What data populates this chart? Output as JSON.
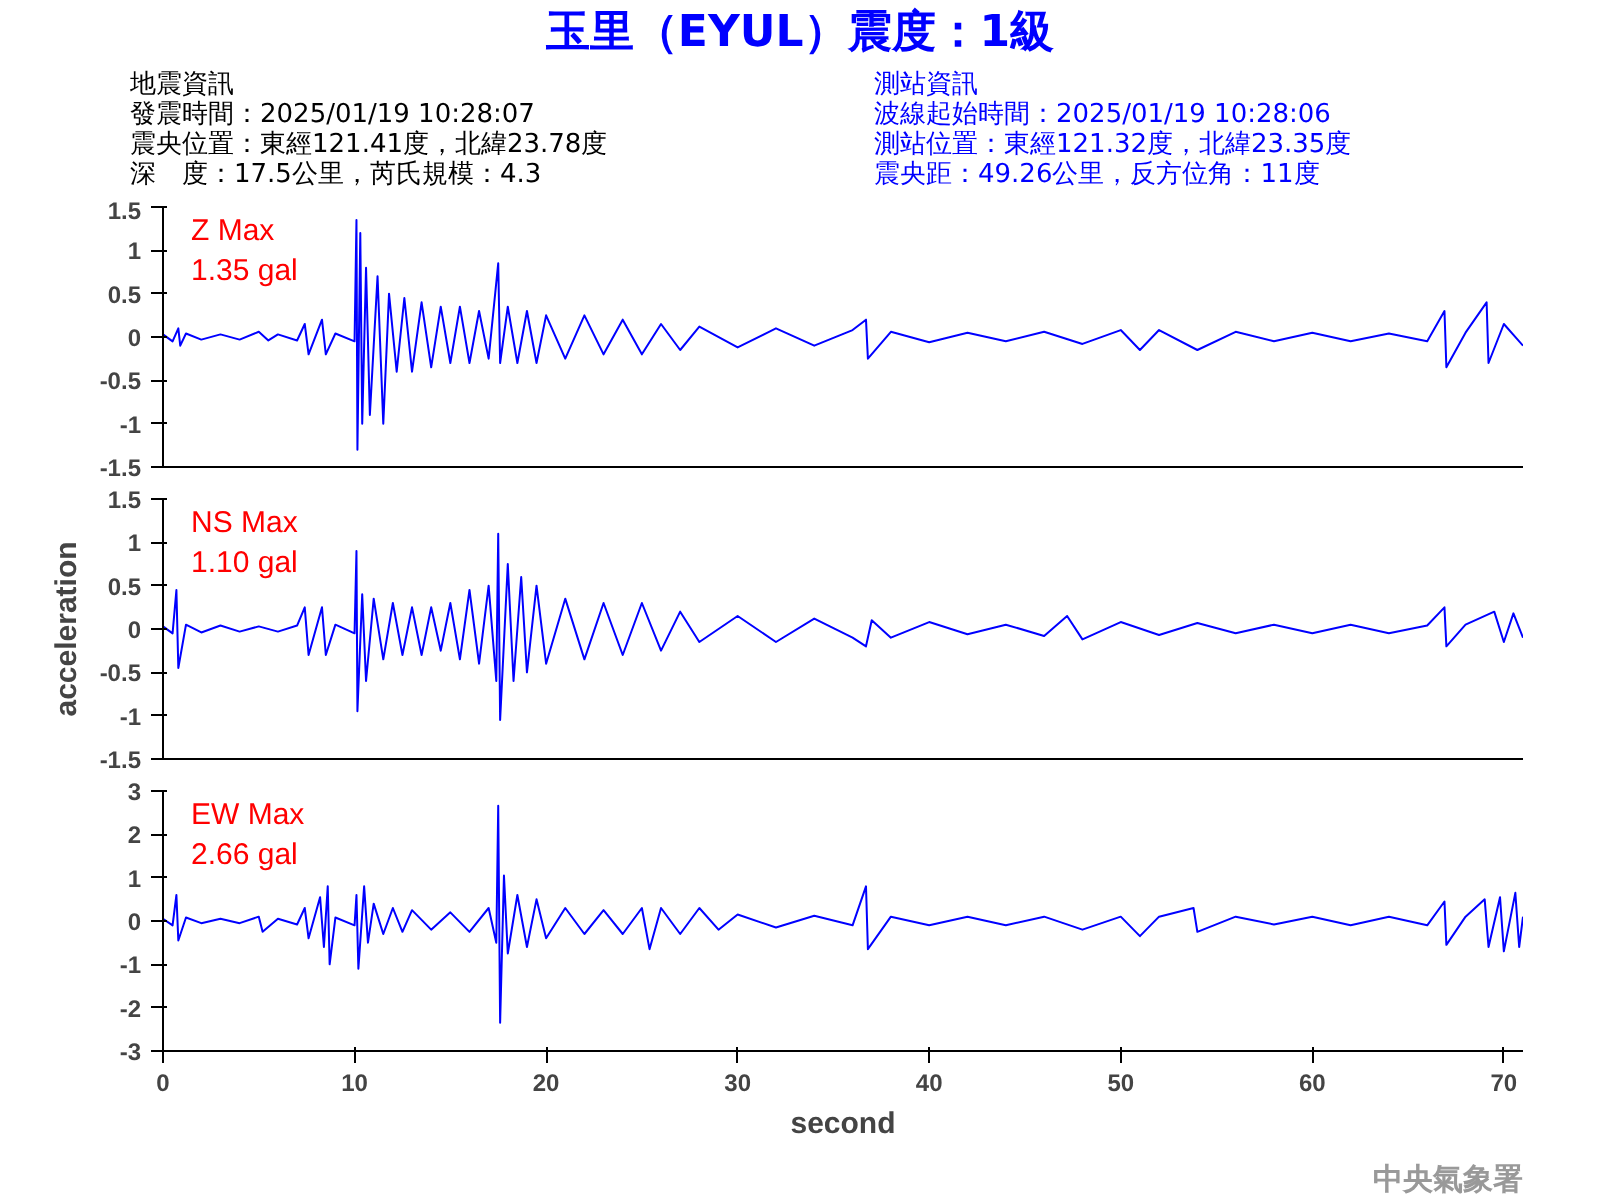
{
  "chart_data": [
    {
      "type": "line",
      "title": "玉里（EYUL）震度：1級",
      "annotations": [
        "Z Max",
        "1.35 gal",
        "地震資訊",
        "發震時間：2025/01/19 10:28:07",
        "震央位置：東經121.41度，北緯23.78度",
        "深　度：17.5公里，芮氏規模：4.3",
        "測站資訊",
        "波線起始時間：2025/01/19 10:28:06",
        "測站位置：東經121.32度，北緯23.35度",
        "震央距：49.26公里，反方位角：11度"
      ],
      "xlim": [
        0,
        71
      ],
      "xticks": [
        0,
        10,
        20,
        30,
        40,
        50,
        60,
        70
      ],
      "ylim": [
        -1.5,
        1.5
      ],
      "yticks": [
        -1.5,
        -1,
        -0.5,
        0,
        0.5,
        1,
        1.5
      ],
      "tick_labels": "y",
      "grid": false,
      "series": [
        {
          "color": "#0000ff",
          "x": [
            0,
            0.5,
            0.8,
            0.9,
            1.2,
            2,
            3,
            4,
            5,
            5.5,
            6,
            7,
            7.4,
            7.6,
            8.3,
            8.5,
            9,
            10,
            10.1,
            10.15,
            10.3,
            10.4,
            10.6,
            10.8,
            11.2,
            11.5,
            11.8,
            12.2,
            12.6,
            13,
            13.5,
            14,
            14.5,
            15,
            15.5,
            16,
            16.5,
            17,
            17.5,
            17.6,
            18,
            18.5,
            19,
            19.5,
            20,
            21,
            22,
            23,
            24,
            25,
            26,
            27,
            28,
            30,
            32,
            34,
            36,
            36.7,
            36.8,
            38,
            40,
            42,
            44,
            46,
            48,
            50,
            51,
            52,
            54,
            56,
            58,
            60,
            62,
            64,
            66,
            66.9,
            67,
            68,
            69.1,
            69.2,
            70,
            71
          ],
          "values": [
            0.03,
            -0.05,
            0.1,
            -0.1,
            0.04,
            -0.03,
            0.03,
            -0.03,
            0.06,
            -0.04,
            0.03,
            -0.04,
            0.15,
            -0.2,
            0.2,
            -0.2,
            0.04,
            -0.05,
            1.35,
            -1.3,
            1.2,
            -1.0,
            0.8,
            -0.9,
            0.7,
            -1.0,
            0.5,
            -0.4,
            0.45,
            -0.4,
            0.4,
            -0.35,
            0.35,
            -0.3,
            0.35,
            -0.3,
            0.3,
            -0.25,
            0.85,
            -0.3,
            0.35,
            -0.3,
            0.3,
            -0.3,
            0.25,
            -0.25,
            0.25,
            -0.2,
            0.2,
            -0.2,
            0.15,
            -0.15,
            0.12,
            -0.12,
            0.1,
            -0.1,
            0.08,
            0.2,
            -0.25,
            0.06,
            -0.06,
            0.05,
            -0.05,
            0.06,
            -0.08,
            0.08,
            -0.15,
            0.08,
            -0.15,
            0.06,
            -0.05,
            0.05,
            -0.05,
            0.04,
            -0.05,
            0.3,
            -0.35,
            0.05,
            0.4,
            -0.3,
            0.15,
            -0.1
          ]
        }
      ]
    },
    {
      "type": "line",
      "ylabel": "acceleration",
      "annotations": [
        "NS Max",
        "1.10 gal"
      ],
      "xlim": [
        0,
        71
      ],
      "xticks": [
        0,
        10,
        20,
        30,
        40,
        50,
        60,
        70
      ],
      "ylim": [
        -1.5,
        1.5
      ],
      "yticks": [
        -1.5,
        -1,
        -0.5,
        0,
        0.5,
        1,
        1.5
      ],
      "tick_labels": "y",
      "grid": false,
      "series": [
        {
          "color": "#0000ff",
          "x": [
            0,
            0.5,
            0.7,
            0.8,
            1.2,
            2,
            3,
            4,
            5,
            6,
            7,
            7.4,
            7.6,
            8.3,
            8.5,
            9,
            10,
            10.1,
            10.15,
            10.4,
            10.6,
            11,
            11.5,
            12,
            12.5,
            13,
            13.5,
            14,
            14.5,
            15,
            15.5,
            16,
            16.5,
            17,
            17.4,
            17.5,
            17.6,
            18,
            18.3,
            18.7,
            19,
            19.5,
            20,
            21,
            22,
            23,
            24,
            25,
            26,
            27,
            28,
            30,
            32,
            34,
            36,
            36.7,
            37,
            38,
            40,
            42,
            44,
            46,
            47.2,
            48,
            50,
            52,
            54,
            56,
            58,
            60,
            62,
            64,
            66,
            66.9,
            67,
            68,
            69.5,
            70,
            70.5,
            71
          ],
          "values": [
            0.03,
            -0.05,
            0.45,
            -0.45,
            0.05,
            -0.04,
            0.04,
            -0.03,
            0.03,
            -0.03,
            0.04,
            0.25,
            -0.3,
            0.25,
            -0.3,
            0.05,
            -0.05,
            0.9,
            -0.95,
            0.4,
            -0.6,
            0.35,
            -0.35,
            0.3,
            -0.3,
            0.25,
            -0.3,
            0.25,
            -0.25,
            0.3,
            -0.35,
            0.45,
            -0.4,
            0.5,
            -0.6,
            1.1,
            -1.05,
            0.75,
            -0.6,
            0.6,
            -0.5,
            0.5,
            -0.4,
            0.35,
            -0.35,
            0.3,
            -0.3,
            0.3,
            -0.25,
            0.2,
            -0.15,
            0.15,
            -0.15,
            0.12,
            -0.1,
            -0.2,
            0.1,
            -0.1,
            0.08,
            -0.06,
            0.05,
            -0.08,
            0.15,
            -0.12,
            0.08,
            -0.07,
            0.07,
            -0.05,
            0.05,
            -0.05,
            0.05,
            -0.05,
            0.04,
            0.25,
            -0.2,
            0.05,
            0.2,
            -0.15,
            0.18,
            -0.1
          ]
        }
      ]
    },
    {
      "type": "line",
      "xlabel": "second",
      "annotations": [
        "EW Max",
        "2.66 gal",
        "中央氣象署"
      ],
      "xlim": [
        0,
        71
      ],
      "xticks": [
        0,
        10,
        20,
        30,
        40,
        50,
        60,
        70
      ],
      "ylim": [
        -3,
        3
      ],
      "yticks": [
        -3,
        -2,
        -1,
        0,
        1,
        2,
        3
      ],
      "grid": false,
      "series": [
        {
          "color": "#0000ff",
          "x": [
            0,
            0.5,
            0.7,
            0.8,
            1.2,
            2,
            3,
            4,
            5,
            5.2,
            6,
            7,
            7.4,
            7.6,
            8.2,
            8.4,
            8.6,
            8.7,
            9,
            10,
            10.1,
            10.2,
            10.5,
            10.7,
            11,
            11.5,
            12,
            12.5,
            13,
            14,
            15,
            16,
            17,
            17.4,
            17.5,
            17.6,
            17.8,
            18,
            18.5,
            19,
            19.5,
            20,
            21,
            22,
            23,
            24,
            25,
            25.4,
            26,
            27,
            28,
            29,
            30,
            32,
            34,
            36,
            36.7,
            36.8,
            38,
            40,
            42,
            44,
            46,
            48,
            50,
            51,
            52,
            53.8,
            54,
            56,
            58,
            60,
            62,
            64,
            66,
            66.9,
            67,
            68,
            69,
            69.2,
            69.8,
            70,
            70.6,
            70.8,
            71
          ],
          "values": [
            0.05,
            -0.1,
            0.6,
            -0.45,
            0.08,
            -0.05,
            0.05,
            -0.05,
            0.1,
            -0.25,
            0.05,
            -0.08,
            0.3,
            -0.4,
            0.55,
            -0.6,
            0.8,
            -1.0,
            0.08,
            -0.1,
            0.6,
            -1.1,
            0.8,
            -0.5,
            0.4,
            -0.3,
            0.3,
            -0.25,
            0.25,
            -0.2,
            0.2,
            -0.25,
            0.3,
            -0.5,
            2.66,
            -2.35,
            1.05,
            -0.75,
            0.6,
            -0.6,
            0.5,
            -0.4,
            0.3,
            -0.3,
            0.25,
            -0.3,
            0.3,
            -0.65,
            0.3,
            -0.3,
            0.3,
            -0.2,
            0.15,
            -0.15,
            0.12,
            -0.1,
            0.8,
            -0.65,
            0.1,
            -0.1,
            0.1,
            -0.1,
            0.1,
            -0.2,
            0.1,
            -0.35,
            0.1,
            0.3,
            -0.25,
            0.1,
            -0.08,
            0.1,
            -0.1,
            0.1,
            -0.1,
            0.45,
            -0.55,
            0.1,
            0.5,
            -0.6,
            0.55,
            -0.7,
            0.65,
            -0.6,
            0.1
          ]
        }
      ]
    }
  ]
}
